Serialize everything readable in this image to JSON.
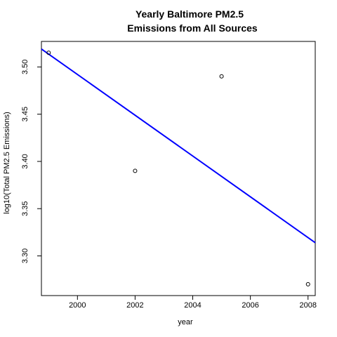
{
  "chart_data": {
    "type": "scatter",
    "title_lines": [
      "Yearly Baltimore PM2.5",
      "Emissions from All Sources"
    ],
    "xlabel": "year",
    "ylabel": "log10(Total PM2.5 Emissions)",
    "xlim": [
      1998.75,
      2008.25
    ],
    "ylim": [
      3.258,
      3.527
    ],
    "x_ticks": [
      2000,
      2002,
      2004,
      2006,
      2008
    ],
    "x_tick_labels": [
      "2000",
      "2002",
      "2004",
      "2006",
      "2008"
    ],
    "y_ticks": [
      3.3,
      3.35,
      3.4,
      3.45,
      3.5
    ],
    "y_tick_labels": [
      "3.30",
      "3.35",
      "3.40",
      "3.45",
      "3.50"
    ],
    "grid": false,
    "points": [
      {
        "x": 1999,
        "y": 3.515
      },
      {
        "x": 2002,
        "y": 3.39
      },
      {
        "x": 2005,
        "y": 3.49
      },
      {
        "x": 2008,
        "y": 3.27
      }
    ],
    "fit_line": {
      "color": "#0000ff",
      "start": {
        "x": 1998.75,
        "y": 3.519
      },
      "end": {
        "x": 2008.25,
        "y": 3.314
      }
    }
  }
}
